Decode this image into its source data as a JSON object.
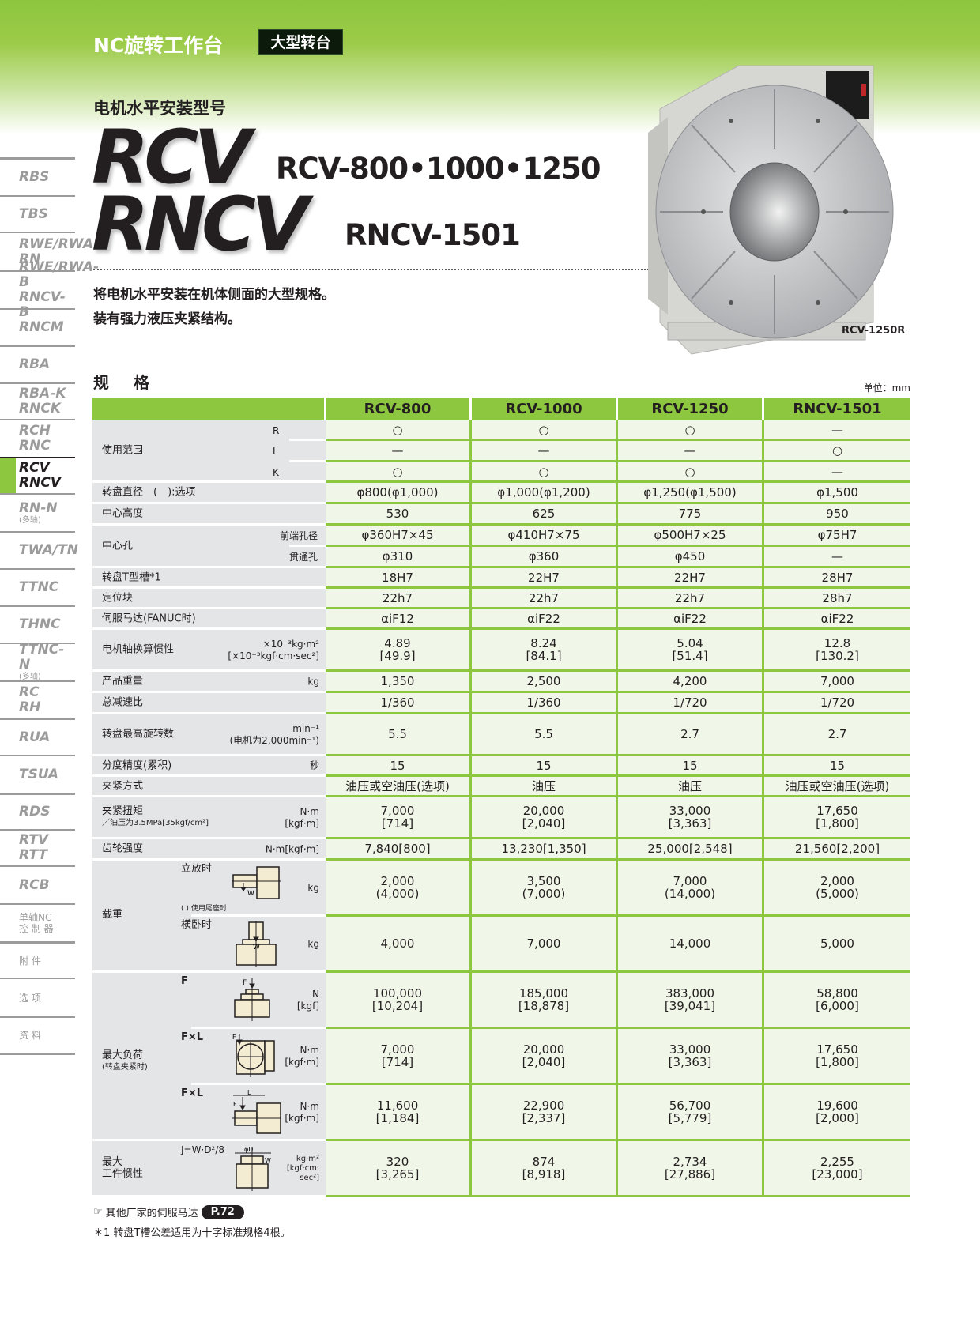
{
  "header": {
    "series": "NC旋转工作台",
    "badge": "大型转台"
  },
  "title": {
    "subtitle": "电机水平安装型号",
    "line1_big": "RCV",
    "line1_models": "RCV-800•1000•1250",
    "line2_big": "RNCV",
    "line2_models": "RNCV-1501"
  },
  "description": [
    "将电机水平安装在机体侧面的大型规格。",
    "装有强力液压夹紧结构。"
  ],
  "photo": {
    "caption": "RCV-1250R",
    "colors": {
      "body": "#d9d9d6",
      "motor": "#1c1c1c",
      "motor_red": "#c0272d"
    }
  },
  "sidebar": {
    "items": [
      {
        "lines": [
          "RBS"
        ]
      },
      {
        "lines": [
          "TBS"
        ]
      },
      {
        "lines": [
          "RWE/RWA",
          "RN"
        ]
      },
      {
        "lines": [
          "RWE/RWA-B",
          "RNCV-B"
        ]
      },
      {
        "lines": [
          "RNCM"
        ]
      },
      {
        "lines": [
          "RBA"
        ]
      },
      {
        "lines": [
          "RBA-K",
          "RNCK"
        ]
      },
      {
        "lines": [
          "RCH",
          "RNC"
        ]
      },
      {
        "lines": [
          "RCV",
          "RNCV"
        ],
        "active": true
      },
      {
        "lines": [
          "RN-N"
        ],
        "small": "(多轴)"
      },
      {
        "lines": [
          "TWA/TN"
        ]
      },
      {
        "lines": [
          "TTNC"
        ]
      },
      {
        "lines": [
          "THNC"
        ]
      },
      {
        "lines": [
          "TTNC-N"
        ],
        "small": "(多轴)"
      },
      {
        "lines": [
          "RC",
          "RH"
        ]
      },
      {
        "lines": [
          "RUA"
        ]
      },
      {
        "lines": [
          "TSUA"
        ]
      },
      {
        "lines": [
          "RDS"
        ]
      },
      {
        "lines": [
          "RTV",
          "RTT"
        ]
      },
      {
        "lines": [
          "RCB"
        ]
      },
      {
        "lines": [
          "单轴NC",
          "控 制 器"
        ],
        "cjk": true
      },
      {
        "lines": [
          "附 件"
        ],
        "cjk": true
      },
      {
        "lines": [
          "选 项"
        ],
        "cjk": true
      },
      {
        "lines": [
          "资 料"
        ],
        "cjk": true
      }
    ]
  },
  "spec": {
    "title": "规 格",
    "unit_note": "单位：mm",
    "colors": {
      "header": "#8dc63f",
      "value_bg": "#f1f7e8",
      "label_bg": "#e4e5e7",
      "diagram_fill": "#f3ecd2"
    },
    "columns": [
      "RCV-800",
      "RCV-1000",
      "RCV-1250",
      "RNCV-1501"
    ],
    "groups": [
      {
        "label": "使用范围",
        "kind": "rlk",
        "rows": [
          {
            "sub": "R",
            "values": [
              "○",
              "○",
              "○",
              "—"
            ]
          },
          {
            "sub": "L",
            "values": [
              "—",
              "—",
              "—",
              "○"
            ]
          },
          {
            "sub": "K",
            "values": [
              "○",
              "○",
              "○",
              "—"
            ]
          }
        ]
      },
      {
        "label": "转盘直径　(　):选项",
        "rows": [
          {
            "values": [
              "φ800(φ1,000)",
              "φ1,000(φ1,200)",
              "φ1,250(φ1,500)",
              "φ1,500"
            ]
          }
        ]
      },
      {
        "label": "中心高度",
        "rows": [
          {
            "values": [
              "530",
              "625",
              "775",
              "950"
            ]
          }
        ]
      },
      {
        "label": "中心孔",
        "kind": "hole",
        "rows": [
          {
            "sub": "前端孔径",
            "values": [
              "φ360H7×45",
              "φ410H7×75",
              "φ500H7×25",
              "φ75H7"
            ]
          },
          {
            "sub": "贯通孔",
            "values": [
              "φ310",
              "φ360",
              "φ450",
              "—"
            ]
          }
        ]
      },
      {
        "label": "转盘T型槽*1",
        "rows": [
          {
            "values": [
              "18H7",
              "22H7",
              "22H7",
              "28H7"
            ]
          }
        ]
      },
      {
        "label": "定位块",
        "rows": [
          {
            "values": [
              "22h7",
              "22h7",
              "22h7",
              "28h7"
            ]
          }
        ]
      },
      {
        "label": "伺服马达(FANUC时)",
        "rows": [
          {
            "values": [
              "αiF12",
              "αiF22",
              "αiF22",
              "αiF22"
            ]
          }
        ]
      },
      {
        "label": "电机轴换算惯性",
        "rows": [
          {
            "unit": "×10⁻³kg·m²\n[×10⁻³kgf·cm·sec²]",
            "values": [
              "4.89\n[49.9]",
              "8.24\n[84.1]",
              "5.04\n[51.4]",
              "12.8\n[130.2]"
            ]
          }
        ]
      },
      {
        "label": "产品重量",
        "rows": [
          {
            "unit": "kg",
            "values": [
              "1,350",
              "2,500",
              "4,200",
              "7,000"
            ]
          }
        ]
      },
      {
        "label": "总减速比",
        "rows": [
          {
            "values": [
              "1/360",
              "1/360",
              "1/720",
              "1/720"
            ]
          }
        ]
      },
      {
        "label": "转盘最高旋转数",
        "rows": [
          {
            "unit": "min⁻¹\n(电机为2,000min⁻¹)",
            "values": [
              "5.5",
              "5.5",
              "2.7",
              "2.7"
            ]
          }
        ]
      },
      {
        "label": "分度精度(累积)",
        "rows": [
          {
            "unit": "秒",
            "values": [
              "15",
              "15",
              "15",
              "15"
            ]
          }
        ]
      },
      {
        "label": "夹紧方式",
        "rows": [
          {
            "values": [
              "油压或空油压(选项)",
              "油压",
              "油压",
              "油压或空油压(选项)"
            ]
          }
        ]
      },
      {
        "label": "夹紧扭矩",
        "note": "／油压为3.5MPa[35kgf/cm²]",
        "rows": [
          {
            "unit": "N·m\n[kgf·m]",
            "values": [
              "7,000\n[714]",
              "20,000\n[2,040]",
              "33,000\n[3,363]",
              "17,650\n[1,800]"
            ]
          }
        ]
      },
      {
        "label": "齿轮强度",
        "rows": [
          {
            "unit": "N·m[kgf·m]",
            "values": [
              "7,840[800]",
              "13,230[1,350]",
              "25,000[2,548]",
              "21,560[2,200]"
            ]
          }
        ]
      },
      {
        "label": "载重",
        "kind": "diagram",
        "rows": [
          {
            "sub": "立放时",
            "diagram": "vertical-load",
            "subnote": "( ):使用尾座时",
            "unit": "kg",
            "values": [
              "2,000\n(4,000)",
              "3,500\n(7,000)",
              "7,000\n(14,000)",
              "2,000\n(5,000)"
            ]
          },
          {
            "sub": "横卧时",
            "diagram": "horizontal-load",
            "unit": "kg",
            "values": [
              "4,000",
              "7,000",
              "14,000",
              "5,000"
            ]
          }
        ]
      },
      {
        "label": "最大负荷",
        "note": "(转盘夹紧时)",
        "kind": "diagram",
        "rows": [
          {
            "sub": "F",
            "diagram": "axial-force",
            "unit": "N\n[kgf]",
            "values": [
              "100,000\n[10,204]",
              "185,000\n[18,878]",
              "383,000\n[39,041]",
              "58,800\n[6,000]"
            ]
          },
          {
            "sub": "F×L",
            "diagram": "face-moment",
            "unit": "N·m\n[kgf·m]",
            "values": [
              "7,000\n[714]",
              "20,000\n[2,040]",
              "33,000\n[3,363]",
              "17,650\n[1,800]"
            ]
          },
          {
            "sub": "F×L",
            "diagram": "overhang-moment",
            "unit": "N·m\n[kgf·m]",
            "values": [
              "11,600\n[1,184]",
              "22,900\n[2,337]",
              "56,700\n[5,779]",
              "19,600\n[2,000]"
            ]
          }
        ]
      },
      {
        "label": "最大\n工件惯性",
        "kind": "diagram",
        "rows": [
          {
            "sub": "J=W·D²/8",
            "diagram": "inertia",
            "unit": "kg·m²\n[kgf·cm·\nsec²]",
            "values": [
              "320\n[3,265]",
              "874\n[8,918]",
              "2,734\n[27,886]",
              "2,255\n[23,000]"
            ]
          }
        ]
      }
    ]
  },
  "footnotes": {
    "ref_text": "其他厂家的伺服马达",
    "ref_page": "P.72",
    "note1": "＊1  转盘T槽公差适用为十字标准规格4根。"
  }
}
